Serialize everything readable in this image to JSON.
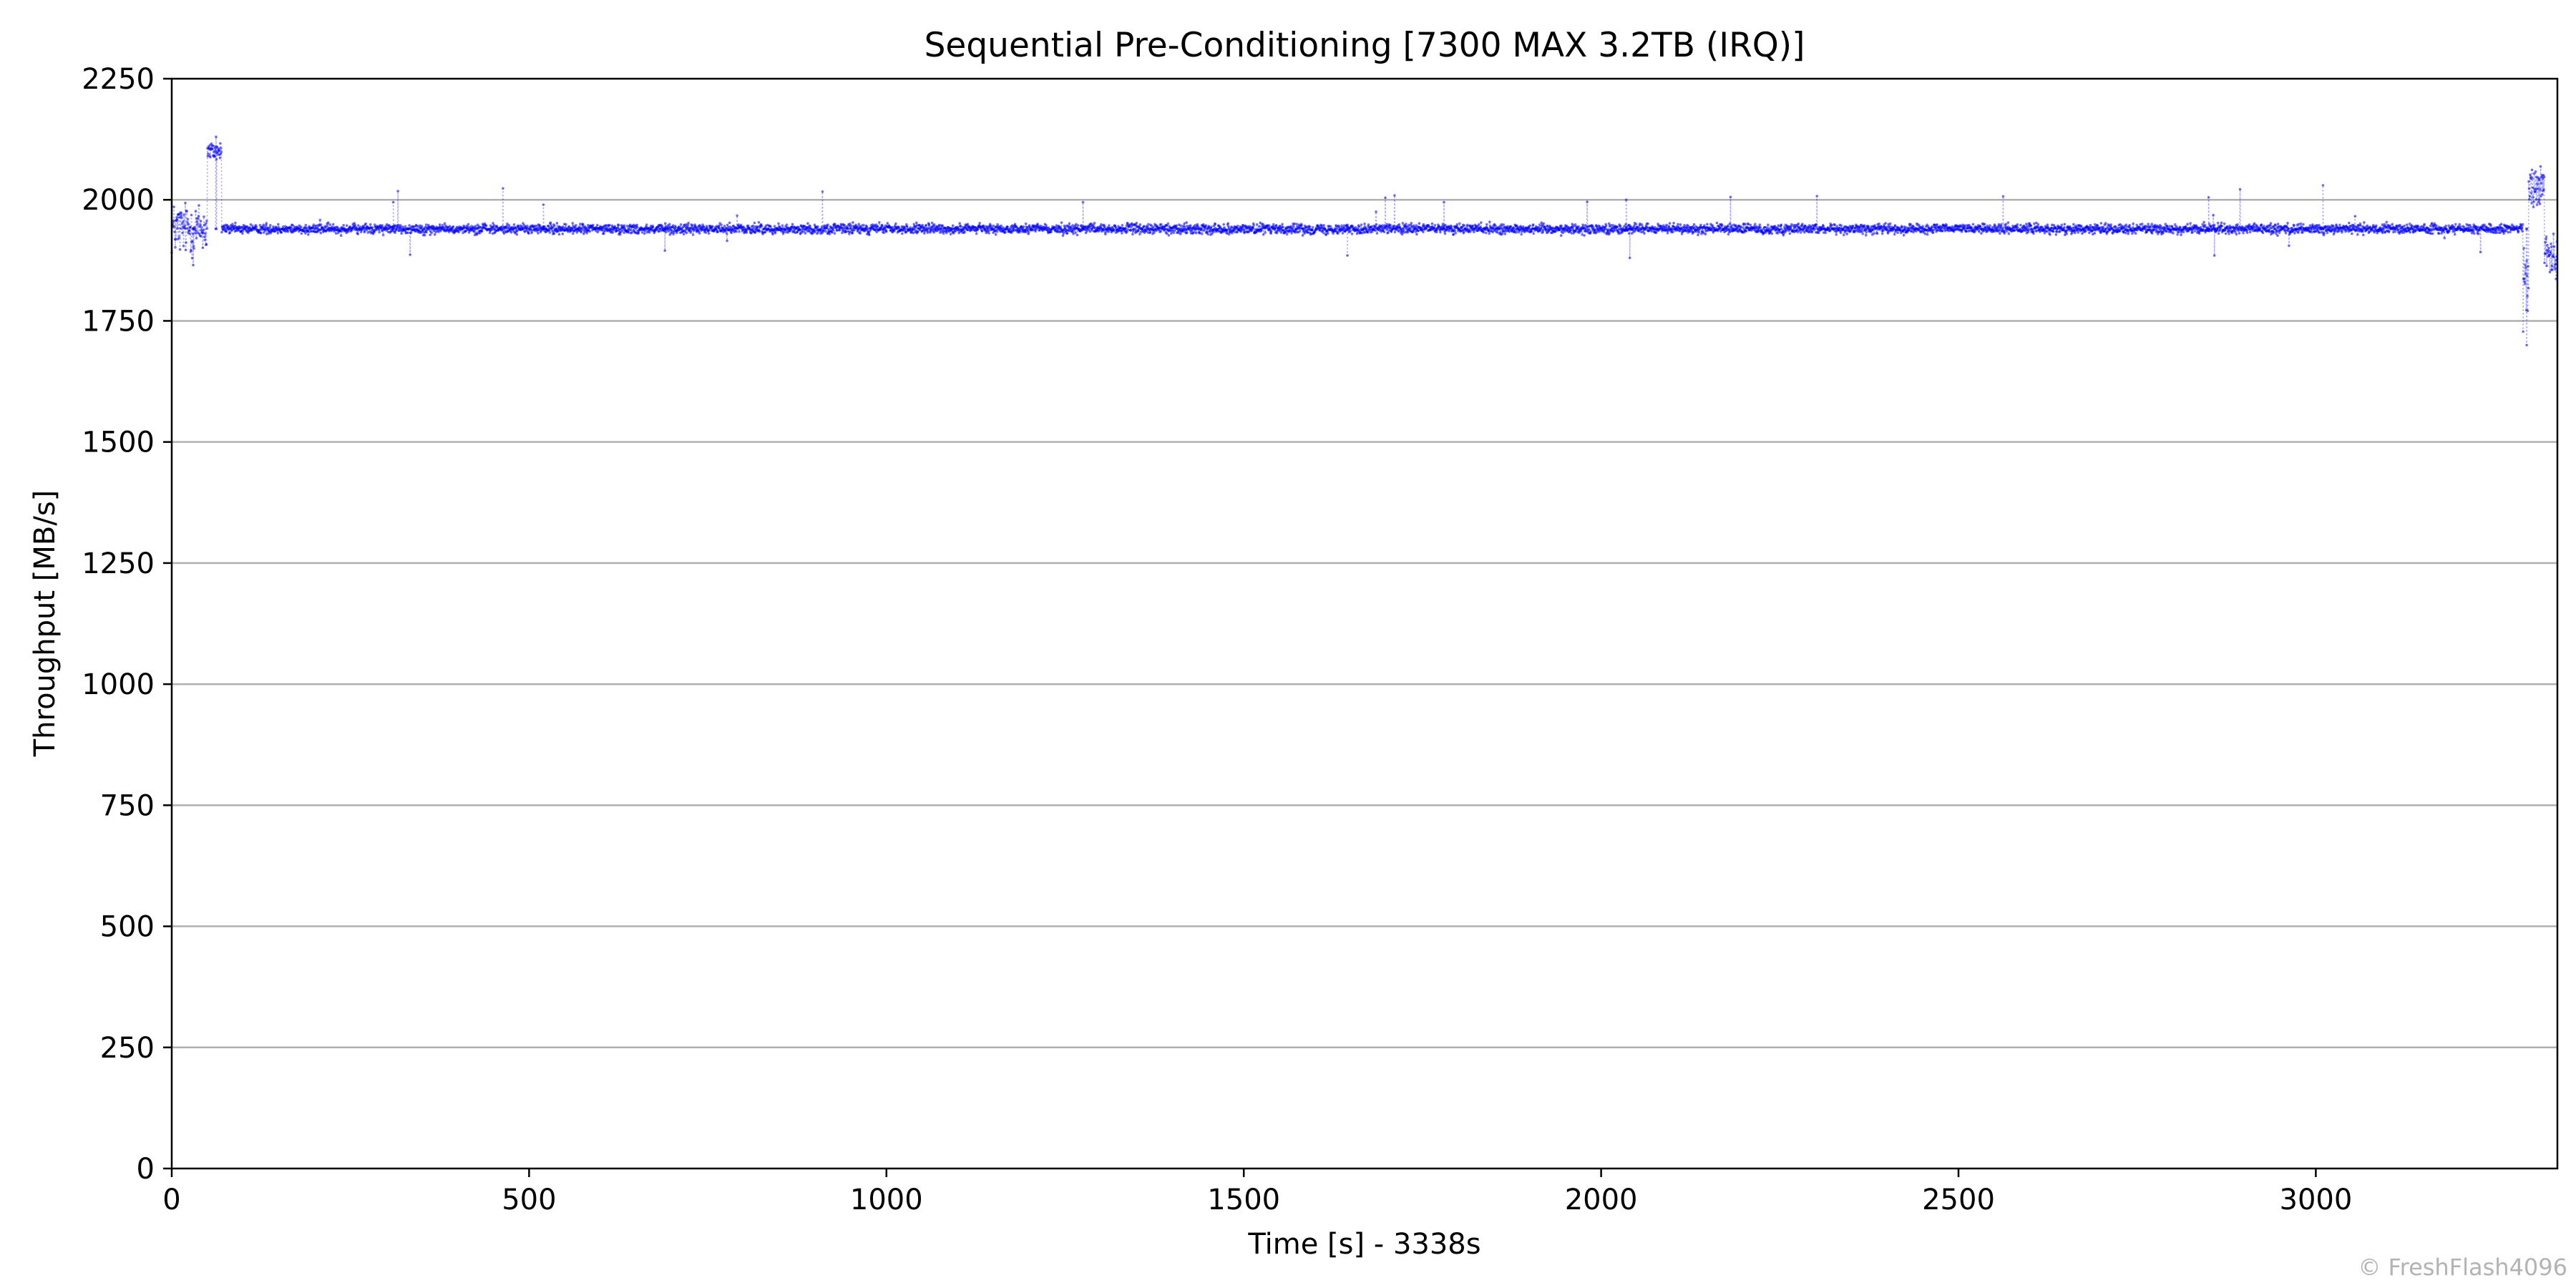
{
  "chart_data": {
    "type": "scatter",
    "title": "Sequential Pre-Conditioning [7300 MAX 3.2TB (IRQ)]",
    "xlabel": "Time [s] - 3338s",
    "ylabel": "Throughput [MB/s]",
    "xlim": [
      0,
      3338
    ],
    "ylim": [
      0,
      2250
    ],
    "xticks": [
      0,
      500,
      1000,
      1500,
      2000,
      2500,
      3000
    ],
    "yticks": [
      0,
      250,
      500,
      750,
      1000,
      1250,
      1500,
      1750,
      2000,
      2250
    ],
    "grid": "horizontal",
    "legend": "none",
    "series": [
      {
        "color": "#0000ff",
        "marker": "dot",
        "line": "dotted",
        "baseline_mb_s": 1940,
        "band_mb_s": [
          1925,
          1955
        ],
        "segments": [
          {
            "x_range": [
              0,
              50
            ],
            "y_range": [
              1860,
              2020
            ]
          },
          {
            "x_range": [
              50,
              70
            ],
            "y_range": [
              2070,
              2130
            ]
          },
          {
            "x_range": [
              70,
              3290
            ],
            "y_range": [
              1875,
              2030
            ]
          },
          {
            "x_range": [
              3290,
              3298
            ],
            "y_range": [
              1700,
              2000
            ]
          },
          {
            "x_range": [
              3298,
              3320
            ],
            "y_range": [
              1960,
              2100
            ]
          },
          {
            "x_range": [
              3320,
              3338
            ],
            "y_range": [
              1820,
              1955
            ]
          }
        ],
        "spikes": [
          {
            "x": 310,
            "y": 1995
          },
          {
            "x": 520,
            "y": 1990
          },
          {
            "x": 690,
            "y": 1895
          },
          {
            "x": 1275,
            "y": 1995
          },
          {
            "x": 1645,
            "y": 1885
          },
          {
            "x": 1780,
            "y": 1995
          },
          {
            "x": 2035,
            "y": 2000
          },
          {
            "x": 2040,
            "y": 1880
          },
          {
            "x": 2850,
            "y": 2005
          },
          {
            "x": 2858,
            "y": 1885
          },
          {
            "x": 3010,
            "y": 2030
          },
          {
            "x": 3295,
            "y": 1700
          },
          {
            "x": 62,
            "y": 2130
          },
          {
            "x": 30,
            "y": 1865
          }
        ]
      }
    ]
  },
  "watermark": "© FreshFlash4096",
  "colors": {
    "series": "#0000ff",
    "grid": "#b0b0b0",
    "axis": "#000000",
    "watermark": "#b3b3b3"
  }
}
